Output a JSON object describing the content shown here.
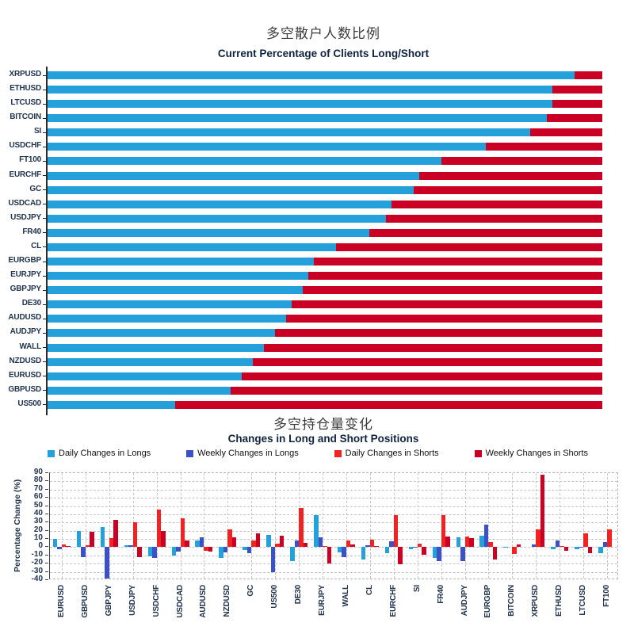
{
  "chart_data": [
    {
      "type": "bar",
      "orientation": "horizontal",
      "stacked": true,
      "title": "多空散户人数比例",
      "subtitle": "Current Percentage of Clients Long/Short",
      "xlim": [
        0,
        100
      ],
      "grid": false,
      "categories": [
        "XRPUSD",
        "ETHUSD",
        "LTCUSD",
        "BITCOIN",
        "SI",
        "USDCHF",
        "FT100",
        "EURCHF",
        "GC",
        "USDCAD",
        "USDJPY",
        "FR40",
        "CL",
        "EURGBP",
        "EURJPY",
        "GBPJPY",
        "DE30",
        "AUDUSD",
        "AUDJPY",
        "WALL",
        "NZDUSD",
        "EURUSD",
        "GBPUSD",
        "US500"
      ],
      "series": [
        {
          "name": "Long",
          "color": "#24A0DA",
          "values": [
            95,
            91,
            91,
            90,
            87,
            79,
            71,
            67,
            66,
            62,
            61,
            58,
            52,
            48,
            47,
            46,
            44,
            43,
            41,
            39,
            37,
            35,
            33,
            23
          ]
        },
        {
          "name": "Short",
          "color": "#C90024",
          "values": [
            5,
            9,
            9,
            10,
            13,
            21,
            29,
            33,
            34,
            38,
            39,
            42,
            48,
            52,
            53,
            54,
            56,
            57,
            59,
            61,
            63,
            65,
            67,
            77
          ]
        }
      ]
    },
    {
      "type": "bar",
      "orientation": "vertical",
      "grouped": true,
      "title": "多空持仓量变化",
      "subtitle": "Changes in Long and Short Positions",
      "ylabel": "Percentage Change (%)",
      "ylim": [
        -40,
        90
      ],
      "yticks": [
        90,
        80,
        70,
        60,
        50,
        40,
        30,
        20,
        10,
        0,
        -10,
        -20,
        -30,
        -40
      ],
      "grid": "dashed",
      "legend_position": "top",
      "categories": [
        "EURUSD",
        "GBPUSD",
        "GBPJPY",
        "USDJPY",
        "USDCHF",
        "USDCAD",
        "AUDUSD",
        "NZDUSD",
        "GC",
        "US500",
        "DE30",
        "EURJPY",
        "WALL",
        "CL",
        "EURCHF",
        "SI",
        "FR40",
        "AUDJPY",
        "EURGBP",
        "BITCOIN",
        "XRPUSD",
        "ETHUSD",
        "LTCUSD",
        "FT100"
      ],
      "series": [
        {
          "name": "Daily Changes in Longs",
          "color": "#24A0DA",
          "values": [
            10,
            20,
            25,
            2,
            -11,
            -10,
            8,
            -13,
            -3,
            15,
            -17,
            39,
            -6,
            -15,
            -7,
            -2,
            -13,
            12,
            14,
            -1,
            0,
            -2,
            -2,
            -7
          ]
        },
        {
          "name": "Weekly Changes in Longs",
          "color": "#3B51C5",
          "values": [
            -2,
            -12,
            -38,
            2,
            -13,
            -5,
            12,
            -6,
            -7,
            -30,
            8,
            12,
            -12,
            2,
            7,
            -1,
            -17,
            -17,
            27,
            0,
            3,
            8,
            -1,
            6
          ]
        },
        {
          "name": "Daily Changes in Shorts",
          "color": "#F32222",
          "values": [
            3,
            2,
            11,
            30,
            46,
            35,
            -4,
            22,
            8,
            4,
            48,
            1,
            8,
            9,
            39,
            4,
            39,
            13,
            6,
            -8,
            22,
            1,
            17,
            22
          ]
        },
        {
          "name": "Weekly Changes in Shorts",
          "color": "#C90024",
          "values": [
            1,
            19,
            33,
            -12,
            20,
            8,
            -5,
            12,
            17,
            14,
            5,
            -20,
            3,
            1,
            -21,
            -9,
            13,
            11,
            -15,
            3,
            88,
            -4,
            -7,
            0
          ]
        }
      ]
    }
  ]
}
